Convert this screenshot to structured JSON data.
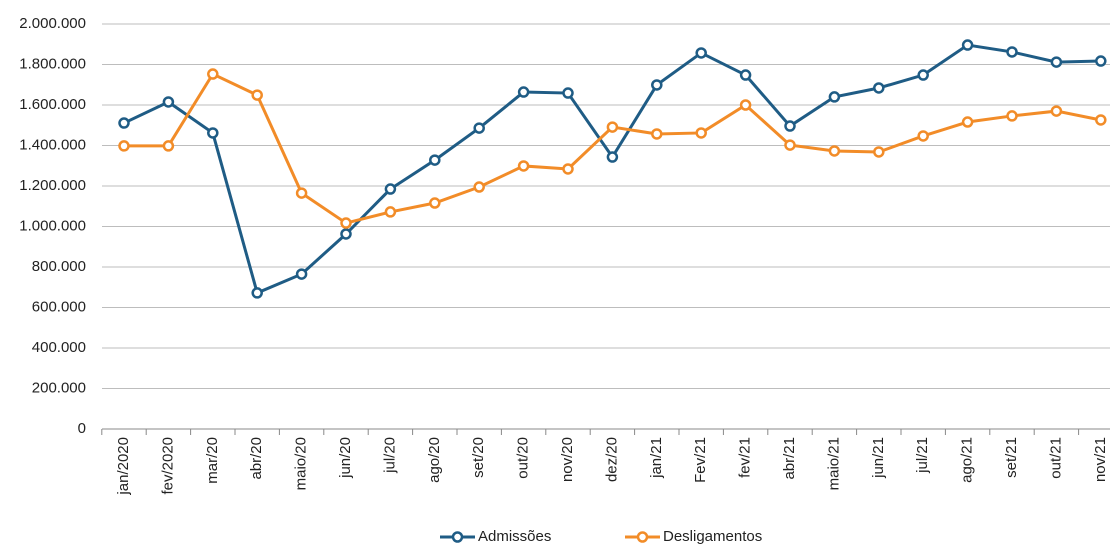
{
  "chart_data": {
    "type": "line",
    "categories": [
      "jan/2020",
      "fev/2020",
      "mar/20",
      "abr/20",
      "maio/20",
      "jun/20",
      "jul/20",
      "ago/20",
      "set/20",
      "out/20",
      "nov/20",
      "dez/20",
      "jan/21",
      "Fev/21",
      "fev/21",
      "abr/21",
      "maio/21",
      "jun/21",
      "jul/21",
      "ago/21",
      "set/21",
      "out/21",
      "nov/21"
    ],
    "series": [
      {
        "name": "Admissões",
        "color": "#1f5c85",
        "values": [
          1511000,
          1615000,
          1462000,
          672000,
          765000,
          963000,
          1185000,
          1328000,
          1486000,
          1664000,
          1659000,
          1343000,
          1699000,
          1857000,
          1748000,
          1496000,
          1640000,
          1684000,
          1748000,
          1896000,
          1862000,
          1812000,
          1817000
        ]
      },
      {
        "name": "Desligamentos",
        "color": "#f28c28",
        "values": [
          1398000,
          1398000,
          1753000,
          1649000,
          1165000,
          1017000,
          1072000,
          1116000,
          1195000,
          1299000,
          1284000,
          1491000,
          1457000,
          1462000,
          1600000,
          1402000,
          1373000,
          1368000,
          1447000,
          1516000,
          1546000,
          1570000,
          1526000
        ]
      }
    ],
    "ylim": [
      0,
      2000000
    ],
    "yticks": [
      0,
      {
        "value": 200000,
        "label": "200.000"
      },
      {
        "value": 400000,
        "label": "400.000"
      },
      {
        "value": 600000,
        "label": "600.000"
      },
      {
        "value": 800000,
        "label": "800.000"
      },
      {
        "value": 1000000,
        "label": "1.000.000"
      },
      {
        "value": 1200000,
        "label": "1.200.000"
      },
      {
        "value": 1400000,
        "label": "1.400.000"
      },
      {
        "value": 1600000,
        "label": "1.600.000"
      },
      {
        "value": 1800000,
        "label": "1.800.000"
      },
      {
        "value": 2000000,
        "label": "2.000.000"
      }
    ],
    "grid": true,
    "legend": "bottom"
  }
}
